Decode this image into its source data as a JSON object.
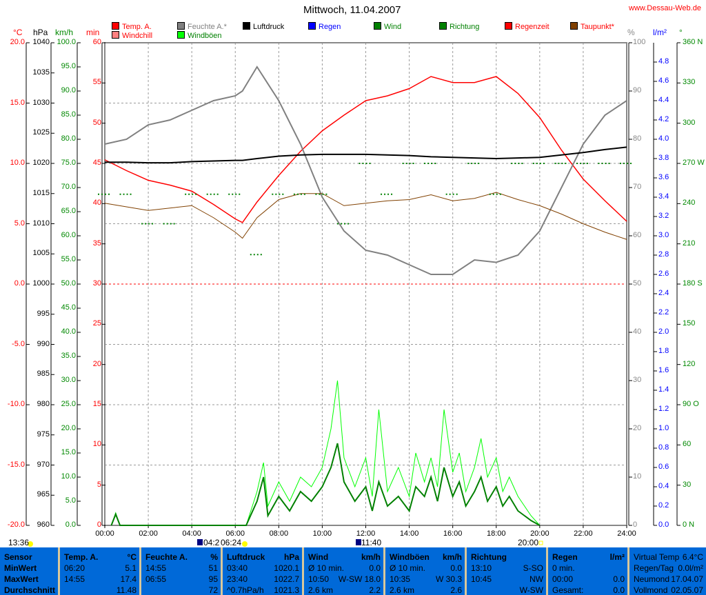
{
  "title": "Mittwoch, 11.04.2007",
  "website": "www.Dessau-Web.de",
  "legend": [
    {
      "label": "Temp. A.",
      "color": "#ff0000",
      "text": "#ff0000"
    },
    {
      "label": "Windchill",
      "color": "#ff8080",
      "text": "#ff0000"
    },
    {
      "label": "Feuchte A.*",
      "color": "#808080",
      "text": "#808080"
    },
    {
      "label": "Windböen",
      "color": "#00ff00",
      "text": "#008000"
    },
    {
      "label": "Luftdruck",
      "color": "#000000",
      "text": "#000000"
    },
    {
      "label": "Regen",
      "color": "#0000ff",
      "text": "#0000ff"
    },
    {
      "label": "Wind",
      "color": "#008000",
      "text": "#008000"
    },
    {
      "label": "Richtung",
      "color": "#008000",
      "text": "#008000"
    },
    {
      "label": "Regenzeit",
      "color": "#ff0000",
      "text": "#ff0000"
    },
    {
      "label": "Taupunkt*",
      "color": "#804000",
      "text": "#ff0000"
    }
  ],
  "axis_units": {
    "temp": "°C",
    "pressure": "hPa",
    "wind": "km/h",
    "minutes": "min",
    "humidity": "%",
    "rain": "l/m²",
    "direction": "°"
  },
  "astro": {
    "sunset_prev": "13:36",
    "moonrise": "04:2",
    "sunrise": "06:24",
    "rain_mark": "11:40",
    "sunset": "20:00"
  },
  "chart_data": {
    "type": "line",
    "title": "Mittwoch, 11.04.2007",
    "x_ticks": [
      "00:00",
      "02:00",
      "04:00",
      "06:00",
      "08:00",
      "10:00",
      "12:00",
      "14:00",
      "16:00",
      "18:00",
      "20:00",
      "22:00",
      "24:00"
    ],
    "temp_ticks": [
      "20.0",
      "15.0",
      "10.0",
      "5.0",
      "0.0",
      "-5.0",
      "-10.0",
      "-15.0",
      "-20.0"
    ],
    "pressure_ticks": [
      "1040",
      "1035",
      "1030",
      "1025",
      "1020",
      "1015",
      "1010",
      "1005",
      "1000",
      "995",
      "990",
      "985",
      "980",
      "975",
      "970",
      "965",
      "960"
    ],
    "wind_ticks": [
      "100.0",
      "95.0",
      "90.0",
      "85.0",
      "80.0",
      "75.0",
      "70.0",
      "65.0",
      "60.0",
      "55.0",
      "50.0",
      "45.0",
      "40.0",
      "35.0",
      "30.0",
      "25.0",
      "20.0",
      "15.0",
      "10.0",
      "5.0",
      "0.0"
    ],
    "min_ticks": [
      "60",
      "55",
      "50",
      "45",
      "40",
      "35",
      "30",
      "25",
      "20",
      "15",
      "10",
      "5",
      "0"
    ],
    "humidity_ticks": [
      "100",
      "90",
      "80",
      "70",
      "60",
      "50",
      "40",
      "30",
      "20",
      "10",
      "0"
    ],
    "rain_ticks": [
      "4.8",
      "4.6",
      "4.4",
      "4.2",
      "4.0",
      "3.8",
      "3.6",
      "3.4",
      "3.2",
      "3.0",
      "2.8",
      "2.6",
      "2.4",
      "2.2",
      "2.0",
      "1.8",
      "1.6",
      "1.4",
      "1.2",
      "1.0",
      "0.8",
      "0.6",
      "0.4",
      "0.2",
      "0.0"
    ],
    "dir_ticks": [
      "360 N",
      "330",
      "300",
      "270 W",
      "240",
      "210",
      "180 S",
      "150",
      "120",
      "90 O",
      "60",
      "30",
      "0 N"
    ],
    "hours": [
      0,
      1,
      2,
      3,
      4,
      5,
      6,
      6.33,
      7,
      8,
      9,
      10,
      11,
      12,
      13,
      14,
      15,
      16,
      17,
      18,
      19,
      20,
      21,
      22,
      23,
      24
    ],
    "series": [
      {
        "name": "Temp. A.",
        "unit": "°C",
        "values": [
          10.3,
          9.4,
          8.6,
          8.2,
          7.7,
          6.6,
          5.4,
          5.1,
          6.8,
          9.0,
          11.0,
          12.7,
          14.0,
          15.2,
          15.6,
          16.2,
          17.2,
          16.7,
          16.7,
          17.2,
          15.8,
          13.8,
          11.1,
          8.7,
          6.9,
          5.2
        ]
      },
      {
        "name": "Feuchte A.",
        "unit": "%",
        "values": [
          79,
          80,
          83,
          84,
          86,
          88,
          89,
          90,
          95,
          88,
          79,
          68,
          61,
          57,
          56,
          54,
          52,
          52,
          55,
          54.5,
          56,
          61,
          70,
          79,
          85,
          88
        ]
      },
      {
        "name": "Luftdruck",
        "unit": "hPa",
        "values": [
          1020.2,
          1020.2,
          1020.1,
          1020.1,
          1020.3,
          1020.4,
          1020.5,
          1020.5,
          1020.8,
          1021.2,
          1021.4,
          1021.5,
          1021.5,
          1021.5,
          1021.4,
          1021.3,
          1021.1,
          1021.0,
          1020.9,
          1020.8,
          1020.9,
          1021.0,
          1021.4,
          1021.8,
          1022.3,
          1022.7
        ]
      },
      {
        "name": "Taupunkt",
        "unit": "°C",
        "values": [
          6.7,
          6.4,
          6.1,
          6.3,
          6.5,
          5.5,
          4.3,
          3.8,
          5.5,
          7.0,
          7.5,
          7.5,
          6.5,
          6.7,
          6.9,
          7.0,
          7.4,
          6.9,
          7.1,
          7.6,
          7.0,
          6.5,
          5.8,
          5.0,
          4.3,
          3.7
        ]
      }
    ],
    "wind_hours": [
      0.3,
      0.5,
      0.7,
      6.5,
      7,
      7.3,
      7.5,
      8,
      8.5,
      9,
      9.5,
      10,
      10.4,
      10.7,
      11,
      11.5,
      12,
      12.3,
      12.6,
      13,
      13.5,
      14,
      14.3,
      14.7,
      15,
      15.3,
      15.6,
      16,
      16.3,
      16.6,
      17,
      17.3,
      17.6,
      18,
      18.3,
      18.6,
      19,
      19.3,
      19.6,
      20
    ],
    "wind": [
      0,
      2.3,
      0,
      0,
      5,
      10,
      2,
      6,
      3,
      7,
      5,
      8,
      12,
      17,
      9,
      5,
      8,
      3,
      9,
      4,
      6,
      3,
      8,
      6,
      10,
      5,
      12,
      6,
      9,
      4,
      7,
      10,
      5,
      8,
      4,
      6,
      3,
      2,
      1,
      0
    ],
    "gusts": [
      0,
      2.6,
      0,
      0,
      7,
      13,
      4,
      9,
      5,
      10,
      8,
      12,
      20,
      30,
      14,
      8,
      14,
      6,
      24,
      7,
      12,
      6,
      15,
      9,
      14,
      8,
      24,
      11,
      15,
      7,
      12,
      18,
      10,
      14,
      7,
      10,
      6,
      4,
      2,
      0
    ],
    "direction_hours": [
      0,
      1,
      2,
      3,
      4,
      5,
      6,
      7,
      8,
      9,
      10,
      11,
      12,
      13,
      14,
      15,
      16,
      17,
      18,
      19,
      20,
      21,
      22,
      23,
      24
    ],
    "direction": [
      247,
      247,
      225,
      225,
      247,
      247,
      247,
      202,
      247,
      247,
      247,
      225,
      270,
      247,
      270,
      270,
      247,
      270,
      247,
      270,
      270,
      270,
      270,
      270,
      270
    ]
  },
  "table": {
    "sensor": {
      "header": "Sensor",
      "rows": [
        "MinWert",
        "MaxWert",
        "Durchschnitt"
      ]
    },
    "temp": {
      "header": "Temp. A.",
      "unit": "°C",
      "min_time": "06:20",
      "min": "5.1",
      "max_time": "14:55",
      "max": "17.4",
      "avg": "11.48"
    },
    "hum": {
      "header": "Feuchte A.",
      "unit": "%",
      "min_time": "14:55",
      "min": "51",
      "max_time": "06:55",
      "max": "95",
      "avg": "72"
    },
    "press": {
      "header": "Luftdruck",
      "unit": "hPa",
      "min_time": "03:40",
      "min": "1020.1",
      "max_time": "23:40",
      "max": "1022.7",
      "trend": "^0.7hPa/h",
      "avg": "1021.3"
    },
    "wind": {
      "header": "Wind",
      "unit": "km/h",
      "r1l": "Ø 10 min.",
      "r1r": "0.0",
      "r2l": "10:50",
      "r2m": "W-SW",
      "r2r": "18.0",
      "r3l": "2.6 km",
      "r3r": "2.2"
    },
    "gust": {
      "header": "Windböen",
      "unit": "km/h",
      "r1l": "Ø 10 min.",
      "r1r": "0.0",
      "r2l": "10:35",
      "r2r": "W 30.3",
      "r3l": "2.6 km",
      "r3r": "2.6"
    },
    "dir": {
      "header": "Richtung",
      "r1l": "13:10",
      "r1r": "S-SO",
      "r2l": "10:45",
      "r2r": "NW",
      "r3r": "W-SW"
    },
    "rain": {
      "header": "Regen",
      "unit": "l/m²",
      "r1l": "0 min.",
      "r2l": "00:00",
      "r2r": "0.0",
      "r3l": "Gesamt:",
      "r3r": "0.0"
    },
    "extra": {
      "r0l": "Virtual Temp",
      "r0r": "6.4°C",
      "r1l": "Regen/Tag",
      "r1r": "0.0l/m²",
      "r2l": "Neumond",
      "r2r": "17.04.07",
      "r3l": "Vollmond",
      "r3r": "02.05.07"
    }
  }
}
